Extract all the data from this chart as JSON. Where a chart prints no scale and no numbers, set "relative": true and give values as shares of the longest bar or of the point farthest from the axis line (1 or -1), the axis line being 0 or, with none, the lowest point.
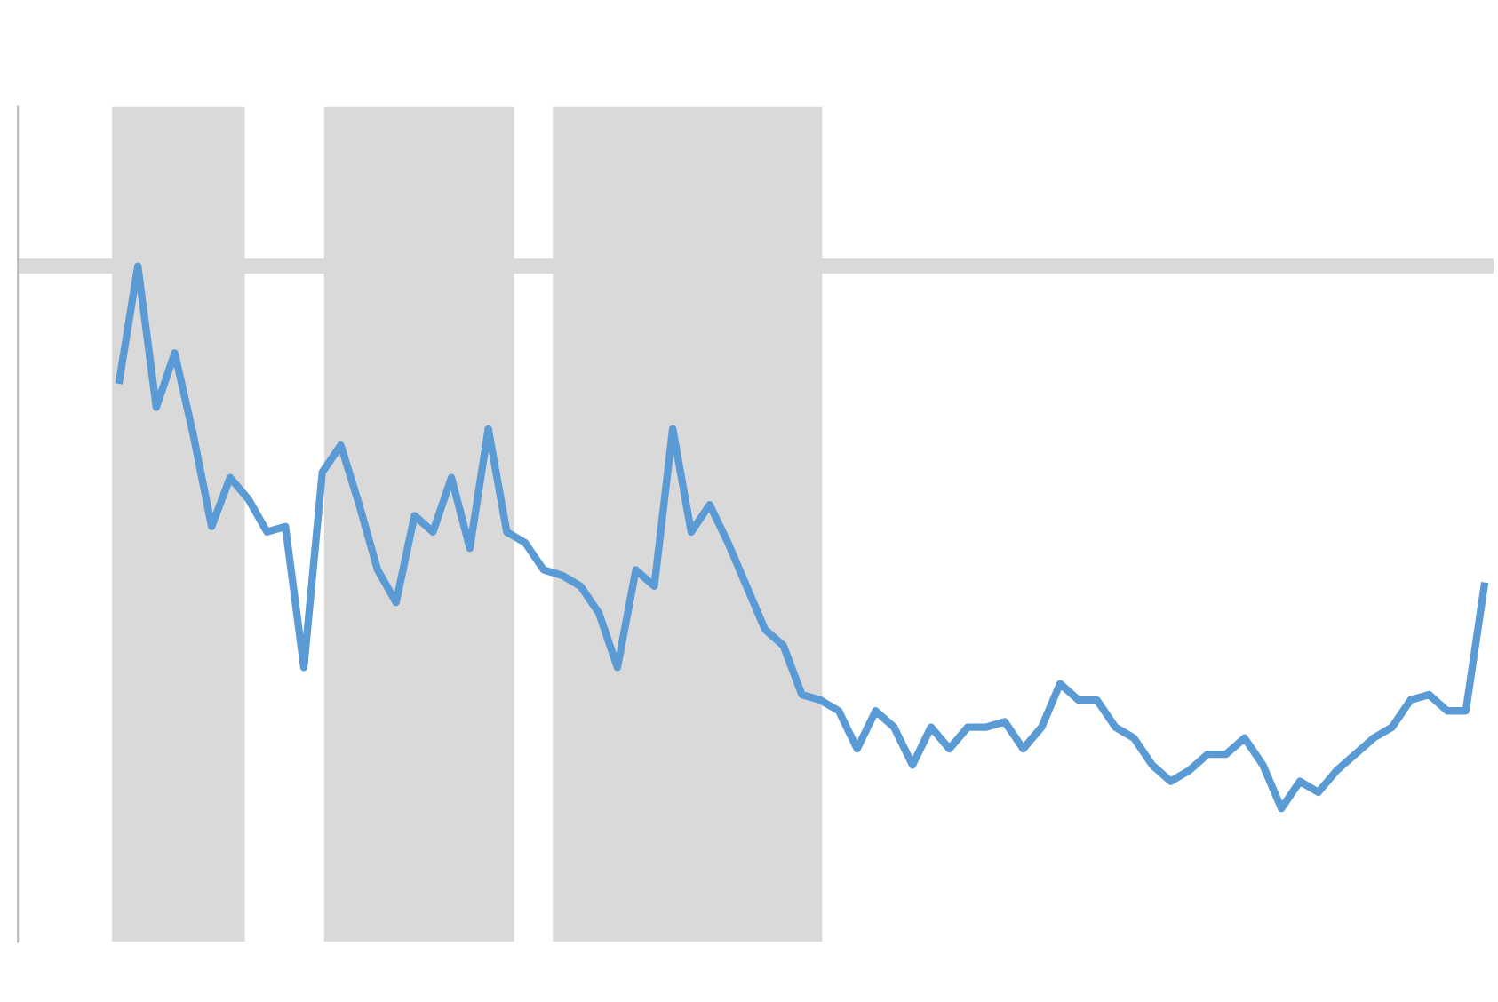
{
  "chart_data": {
    "type": "line",
    "relative": true,
    "categories": [
      null,
      null,
      null,
      null,
      null,
      null,
      null,
      null,
      null,
      null,
      null,
      null,
      null,
      null,
      null,
      null,
      null,
      null,
      null,
      null,
      null,
      null,
      null,
      null,
      null,
      null,
      null,
      null,
      null,
      null,
      null,
      null,
      null,
      null,
      null,
      null,
      null,
      null,
      null,
      null,
      null,
      null,
      null,
      null,
      null,
      null,
      null,
      null,
      null,
      null,
      null,
      null,
      null,
      null,
      null,
      null,
      null,
      null,
      null,
      null,
      null,
      null,
      null,
      null,
      null,
      null,
      null,
      null,
      null,
      null,
      null,
      null,
      null,
      null,
      null
    ],
    "series": [
      {
        "color": "#5b9bd5",
        "values": [
          0.79,
          1,
          0.74,
          0.84,
          0.69,
          0.52,
          0.61,
          0.57,
          0.51,
          0.52,
          0.26,
          0.62,
          0.67,
          0.56,
          0.44,
          0.38,
          0.54,
          0.51,
          0.61,
          0.48,
          0.7,
          0.51,
          0.49,
          0.44,
          0.43,
          0.41,
          0.36,
          0.26,
          0.44,
          0.41,
          0.7,
          0.51,
          0.56,
          0.49,
          0.41,
          0.33,
          0.3,
          0.21,
          0.2,
          0.18,
          0.11,
          0.18,
          0.15,
          0.08,
          0.15,
          0.11,
          0.15,
          0.15,
          0.16,
          0.11,
          0.15,
          0.23,
          0.2,
          0.2,
          0.15,
          0.13,
          0.08,
          0.05,
          0.07,
          0.1,
          0.1,
          0.13,
          0.08,
          0,
          0.05,
          0.03,
          0.07,
          0.1,
          0.13,
          0.15,
          0.2,
          0.21,
          0.18,
          0.18,
          0.41
        ]
      }
    ]
  }
}
